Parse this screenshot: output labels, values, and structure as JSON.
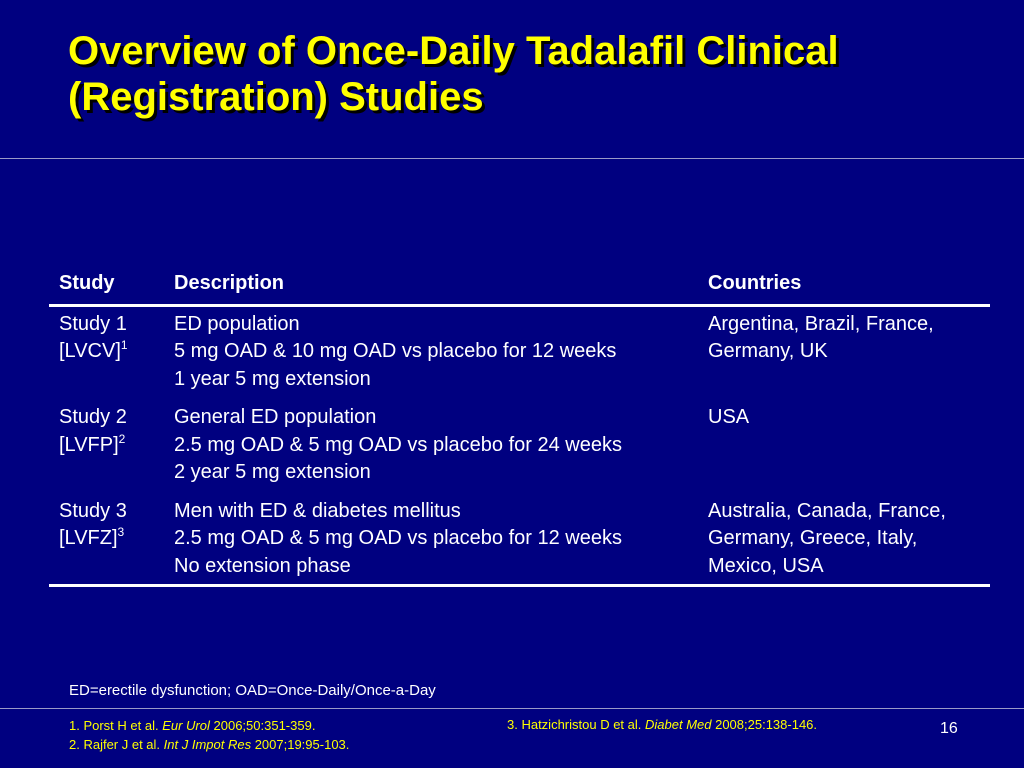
{
  "title": {
    "line1": "Overview of Once-Daily Tadalafil Clinical",
    "line2": "(Registration) Studies"
  },
  "table": {
    "headers": [
      "Study",
      "Description",
      "Countries"
    ],
    "rows": [
      {
        "study": "Study 1",
        "code": "[LVCV]",
        "ref": "1",
        "description": [
          "ED population",
          "5 mg OAD & 10 mg OAD vs placebo for 12 weeks",
          "1 year 5 mg extension"
        ],
        "countries": [
          "Argentina, Brazil, France,",
          "Germany, UK"
        ]
      },
      {
        "study": "Study 2",
        "code": "[LVFP]",
        "ref": "2",
        "description": [
          "General ED population",
          "2.5 mg OAD & 5 mg OAD vs placebo for 24 weeks",
          "2 year 5 mg extension"
        ],
        "countries": [
          "USA"
        ]
      },
      {
        "study": "Study 3",
        "code": "[LVFZ]",
        "ref": "3",
        "description": [
          "Men with ED & diabetes mellitus",
          "2.5 mg OAD & 5 mg OAD vs placebo for 12 weeks",
          "No extension phase"
        ],
        "countries": [
          "Australia, Canada, France,",
          "Germany, Greece, Italy,",
          "Mexico, USA"
        ]
      }
    ]
  },
  "footnote": "ED=erectile dysfunction; OAD=Once-Daily/Once-a-Day",
  "references": [
    {
      "prefix": "1. Porst H et al. ",
      "journal": "Eur Urol",
      "suffix": " 2006;50:351-359."
    },
    {
      "prefix": "2. Rajfer J et al. ",
      "journal": "Int J Impot Res",
      "suffix": " 2007;19:95-103."
    },
    {
      "prefix": "3. Hatzichristou D et al. ",
      "journal": "Diabet Med",
      "suffix": " 2008;25:138-146."
    }
  ],
  "page_number": "16",
  "colors": {
    "background": "#000080",
    "title": "#ffff00",
    "text": "#ffffff",
    "references": "#ffff00"
  }
}
